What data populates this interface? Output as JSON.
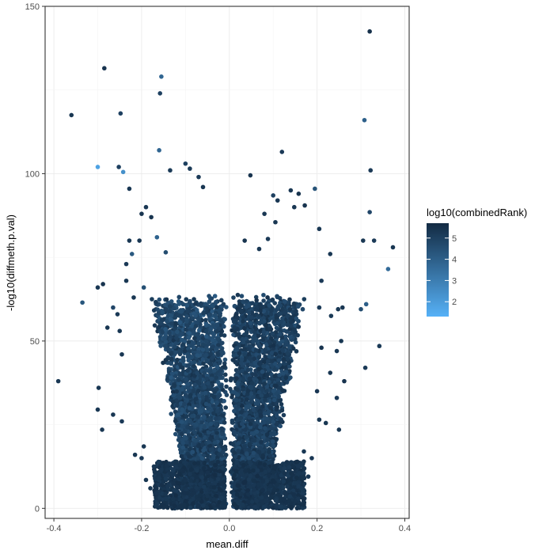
{
  "chart_data": {
    "type": "scatter",
    "title": "",
    "xlabel": "mean.diff",
    "ylabel": "-log10(diffmeth.p.val)",
    "xlim": [
      -0.42,
      0.41
    ],
    "ylim": [
      -3,
      150
    ],
    "x_ticks": [
      -0.4,
      -0.2,
      0.0,
      0.2,
      0.4
    ],
    "x_tick_labels": [
      "-0.4",
      "-0.2",
      "0.0",
      "0.2",
      "0.4"
    ],
    "y_ticks": [
      0,
      50,
      100,
      150
    ],
    "y_tick_labels": [
      "0",
      "50",
      "100",
      "150"
    ],
    "grid": true,
    "theme": "black border, light grey major and minor gridlines",
    "legend": {
      "title": "log10(combinedRank)",
      "placement": "right",
      "type": "color gradient",
      "range": [
        1.3,
        5.7
      ],
      "ticks": [
        2,
        3,
        4,
        5
      ],
      "tick_labels": [
        "2",
        "3",
        "4",
        "5"
      ],
      "low_color": "#56b1f7",
      "high_color": "#132b43"
    },
    "color_variable": "log10(combinedRank)",
    "points": [
      {
        "x": 0.32,
        "y": 142.5,
        "c": 5.5
      },
      {
        "x": -0.285,
        "y": 131.5,
        "c": 5.4
      },
      {
        "x": -0.155,
        "y": 129,
        "c": 3.8
      },
      {
        "x": -0.158,
        "y": 124,
        "c": 5.0
      },
      {
        "x": -0.248,
        "y": 118,
        "c": 5.0
      },
      {
        "x": -0.36,
        "y": 117.5,
        "c": 5.3
      },
      {
        "x": 0.308,
        "y": 116,
        "c": 4.0
      },
      {
        "x": 0.12,
        "y": 106.5,
        "c": 5.2
      },
      {
        "x": -0.16,
        "y": 107,
        "c": 3.8
      },
      {
        "x": -0.3,
        "y": 102,
        "c": 1.8
      },
      {
        "x": -0.252,
        "y": 102,
        "c": 5.0
      },
      {
        "x": -0.242,
        "y": 100.5,
        "c": 2.4
      },
      {
        "x": -0.1,
        "y": 103,
        "c": 5.0
      },
      {
        "x": -0.135,
        "y": 101,
        "c": 5.2
      },
      {
        "x": -0.09,
        "y": 101.5,
        "c": 5.2
      },
      {
        "x": 0.048,
        "y": 99.5,
        "c": 5.4
      },
      {
        "x": 0.322,
        "y": 101,
        "c": 5.2
      },
      {
        "x": -0.07,
        "y": 99,
        "c": 5.2
      },
      {
        "x": 0.195,
        "y": 95.5,
        "c": 4.4
      },
      {
        "x": -0.228,
        "y": 95.5,
        "c": 5.3
      },
      {
        "x": -0.06,
        "y": 96,
        "c": 5.3
      },
      {
        "x": 0.1,
        "y": 93.5,
        "c": 5.0
      },
      {
        "x": 0.32,
        "y": 88.5,
        "c": 4.8
      },
      {
        "x": 0.33,
        "y": 80,
        "c": 5.2
      },
      {
        "x": 0.305,
        "y": 80,
        "c": 5.3
      },
      {
        "x": 0.373,
        "y": 78,
        "c": 5.3
      },
      {
        "x": 0.362,
        "y": 71.5,
        "c": 3.6
      },
      {
        "x": 0.312,
        "y": 61,
        "c": 4.0
      },
      {
        "x": 0.3,
        "y": 59.5,
        "c": 4.6
      },
      {
        "x": 0.342,
        "y": 48.5,
        "c": 5.2
      },
      {
        "x": 0.31,
        "y": 42,
        "c": 5.2
      },
      {
        "x": 0.258,
        "y": 60,
        "c": 5.3
      },
      {
        "x": 0.248,
        "y": 59.5,
        "c": 5.3
      },
      {
        "x": 0.232,
        "y": 57.5,
        "c": 5.2
      },
      {
        "x": 0.255,
        "y": 50,
        "c": 5.3
      },
      {
        "x": 0.245,
        "y": 47,
        "c": 5.3
      },
      {
        "x": 0.21,
        "y": 48,
        "c": 5.4
      },
      {
        "x": 0.262,
        "y": 38,
        "c": 5.4
      },
      {
        "x": 0.25,
        "y": 23.5,
        "c": 5.3
      },
      {
        "x": 0.245,
        "y": 33,
        "c": 5.2
      },
      {
        "x": 0.23,
        "y": 40.5,
        "c": 5.3
      },
      {
        "x": 0.205,
        "y": 26.5,
        "c": 5.3
      },
      {
        "x": 0.2,
        "y": 35,
        "c": 5.3
      },
      {
        "x": 0.22,
        "y": 25.5,
        "c": 5.3
      },
      {
        "x": 0.205,
        "y": 60,
        "c": 5.2
      },
      {
        "x": 0.21,
        "y": 68,
        "c": 5.2
      },
      {
        "x": 0.23,
        "y": 76,
        "c": 5.3
      },
      {
        "x": 0.205,
        "y": 83.5,
        "c": 5.3
      },
      {
        "x": 0.172,
        "y": 90.5,
        "c": 5.4
      },
      {
        "x": 0.158,
        "y": 94,
        "c": 5.4
      },
      {
        "x": 0.148,
        "y": 90,
        "c": 5.3
      },
      {
        "x": 0.14,
        "y": 95,
        "c": 5.3
      },
      {
        "x": 0.11,
        "y": 92,
        "c": 5.3
      },
      {
        "x": 0.105,
        "y": 85.5,
        "c": 5.3
      },
      {
        "x": 0.08,
        "y": 88,
        "c": 5.3
      },
      {
        "x": 0.035,
        "y": 80,
        "c": 5.4
      },
      {
        "x": 0.088,
        "y": 80.5,
        "c": 5.2
      },
      {
        "x": 0.068,
        "y": 77.5,
        "c": 5.3
      },
      {
        "x": -0.39,
        "y": 38,
        "c": 5.3
      },
      {
        "x": -0.335,
        "y": 61.5,
        "c": 4.3
      },
      {
        "x": -0.3,
        "y": 66,
        "c": 5.3
      },
      {
        "x": -0.288,
        "y": 67,
        "c": 5.4
      },
      {
        "x": -0.298,
        "y": 36,
        "c": 5.3
      },
      {
        "x": -0.3,
        "y": 29.5,
        "c": 5.3
      },
      {
        "x": -0.29,
        "y": 23.5,
        "c": 5.3
      },
      {
        "x": -0.265,
        "y": 28,
        "c": 5.3
      },
      {
        "x": -0.278,
        "y": 54,
        "c": 5.3
      },
      {
        "x": -0.265,
        "y": 60,
        "c": 4.8
      },
      {
        "x": -0.255,
        "y": 58,
        "c": 5.2
      },
      {
        "x": -0.25,
        "y": 53,
        "c": 5.3
      },
      {
        "x": -0.245,
        "y": 46,
        "c": 5.3
      },
      {
        "x": -0.245,
        "y": 26,
        "c": 5.2
      },
      {
        "x": -0.235,
        "y": 68,
        "c": 5.3
      },
      {
        "x": -0.228,
        "y": 80,
        "c": 5.3
      },
      {
        "x": -0.222,
        "y": 76,
        "c": 4.2
      },
      {
        "x": -0.235,
        "y": 73,
        "c": 5.2
      },
      {
        "x": -0.218,
        "y": 63,
        "c": 5.3
      },
      {
        "x": -0.195,
        "y": 66,
        "c": 4.5
      },
      {
        "x": -0.205,
        "y": 80,
        "c": 5.3
      },
      {
        "x": -0.2,
        "y": 88,
        "c": 5.4
      },
      {
        "x": -0.19,
        "y": 90,
        "c": 5.3
      },
      {
        "x": -0.178,
        "y": 87,
        "c": 5.4
      },
      {
        "x": -0.165,
        "y": 81,
        "c": 3.9
      },
      {
        "x": -0.145,
        "y": 76.5,
        "c": 4.6
      },
      {
        "x": -0.215,
        "y": 16,
        "c": 5.3
      },
      {
        "x": -0.2,
        "y": 15,
        "c": 5.2
      },
      {
        "x": -0.195,
        "y": 18.5,
        "c": 5.3
      },
      {
        "x": -0.19,
        "y": 8.5,
        "c": 5.3
      },
      {
        "x": -0.18,
        "y": 6,
        "c": 5.3
      },
      {
        "x": -0.172,
        "y": 12.5,
        "c": 5.3
      },
      {
        "x": -0.16,
        "y": 9,
        "c": 5.3
      },
      {
        "x": -0.155,
        "y": 11.5,
        "c": 5.3
      },
      {
        "x": 0.132,
        "y": 6.5,
        "c": 5.3
      },
      {
        "x": 0.152,
        "y": 7.5,
        "c": 5.3
      },
      {
        "x": 0.16,
        "y": 10.5,
        "c": 5.3
      },
      {
        "x": 0.17,
        "y": 17,
        "c": 5.3
      },
      {
        "x": 0.18,
        "y": 9.5,
        "c": 5.3
      },
      {
        "x": 0.188,
        "y": 15,
        "c": 5.3
      }
    ],
    "dense_regions": [
      {
        "side": "left",
        "x_outer": -0.19,
        "y_outer": 62,
        "x_inner": -0.035,
        "y_bottom": 0
      },
      {
        "side": "right",
        "x_outer": 0.19,
        "y_outer": 62,
        "x_inner": 0.025,
        "y_bottom": 0
      }
    ]
  }
}
